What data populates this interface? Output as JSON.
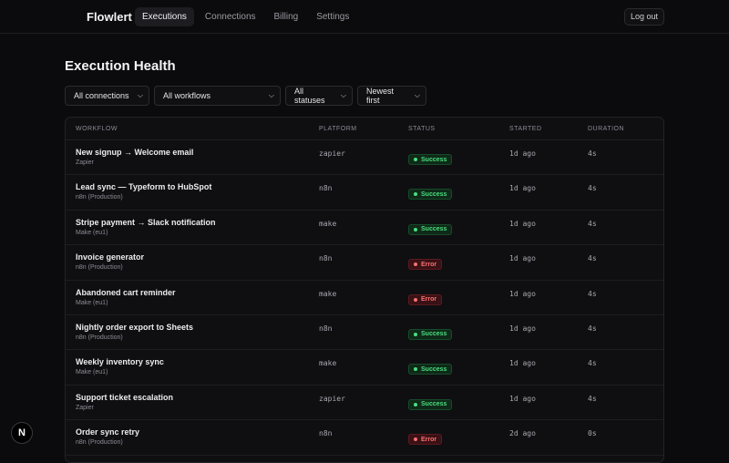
{
  "app": {
    "brand": "Flowlert",
    "nav": [
      {
        "label": "Executions",
        "active": true
      },
      {
        "label": "Connections",
        "active": false
      },
      {
        "label": "Billing",
        "active": false
      },
      {
        "label": "Settings",
        "active": false
      }
    ],
    "logout_label": "Log out"
  },
  "page": {
    "title": "Execution Health"
  },
  "filters": {
    "connections": "All connections",
    "workflows": "All workflows",
    "statuses": "All statuses",
    "sort": "Newest first"
  },
  "table": {
    "headers": {
      "workflow": "WORKFLOW",
      "platform": "PLATFORM",
      "status": "STATUS",
      "started": "STARTED",
      "duration": "DURATION"
    },
    "rows": [
      {
        "name": "New signup → Welcome email",
        "connection": "Zapier",
        "platform": "zapier",
        "status": "Success",
        "status_type": "success",
        "started": "1d ago",
        "duration": "4s"
      },
      {
        "name": "Lead sync — Typeform to HubSpot",
        "connection": "n8n (Production)",
        "platform": "n8n",
        "status": "Success",
        "status_type": "success",
        "started": "1d ago",
        "duration": "4s"
      },
      {
        "name": "Stripe payment → Slack notification",
        "connection": "Make (eu1)",
        "platform": "make",
        "status": "Success",
        "status_type": "success",
        "started": "1d ago",
        "duration": "4s"
      },
      {
        "name": "Invoice generator",
        "connection": "n8n (Production)",
        "platform": "n8n",
        "status": "Error",
        "status_type": "error",
        "started": "1d ago",
        "duration": "4s"
      },
      {
        "name": "Abandoned cart reminder",
        "connection": "Make (eu1)",
        "platform": "make",
        "status": "Error",
        "status_type": "error",
        "started": "1d ago",
        "duration": "4s"
      },
      {
        "name": "Nightly order export to Sheets",
        "connection": "n8n (Production)",
        "platform": "n8n",
        "status": "Success",
        "status_type": "success",
        "started": "1d ago",
        "duration": "4s"
      },
      {
        "name": "Weekly inventory sync",
        "connection": "Make (eu1)",
        "platform": "make",
        "status": "Success",
        "status_type": "success",
        "started": "1d ago",
        "duration": "4s"
      },
      {
        "name": "Support ticket escalation",
        "connection": "Zapier",
        "platform": "zapier",
        "status": "Success",
        "status_type": "success",
        "started": "1d ago",
        "duration": "4s"
      },
      {
        "name": "Order sync retry",
        "connection": "n8n (Production)",
        "platform": "n8n",
        "status": "Error",
        "status_type": "error",
        "started": "2d ago",
        "duration": "0s"
      }
    ]
  },
  "dev_badge": "N",
  "colors": {
    "background": "#0b0b0d",
    "success": "#4ade80",
    "error": "#f87171"
  }
}
